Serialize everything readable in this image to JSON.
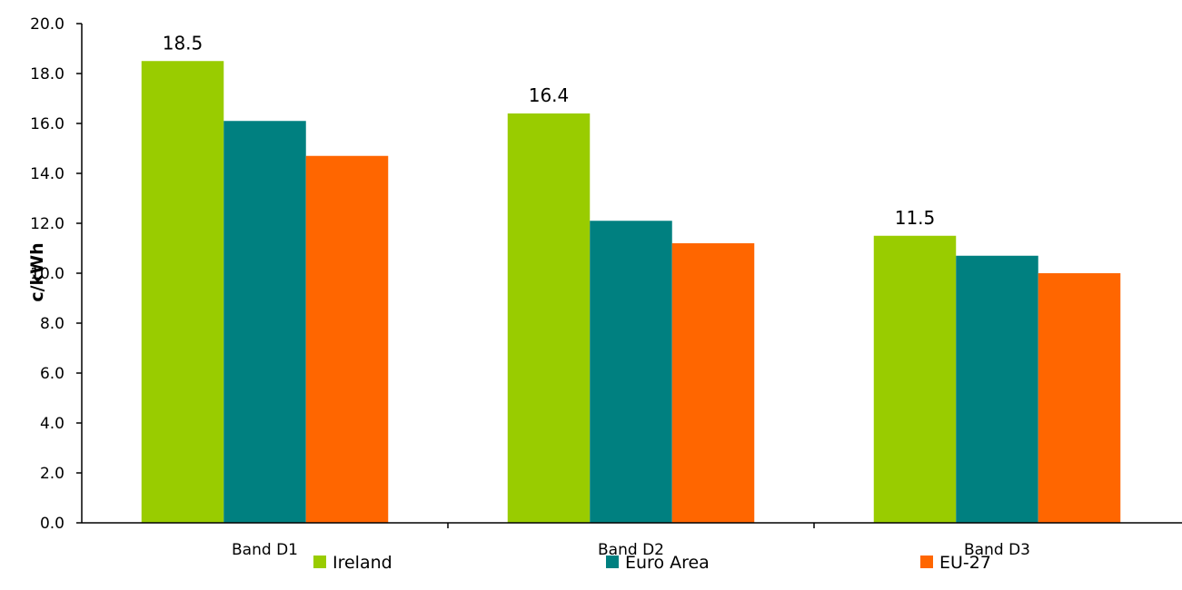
{
  "chart_data": {
    "type": "bar",
    "title": "",
    "xlabel": "",
    "ylabel": "c/kWh",
    "ylim": [
      0,
      20
    ],
    "yticks": [
      "0.0",
      "2.0",
      "4.0",
      "6.0",
      "8.0",
      "10.0",
      "12.0",
      "14.0",
      "16.0",
      "18.0",
      "20.0"
    ],
    "categories": [
      "Band D1",
      "Band D2",
      "Band D3"
    ],
    "series": [
      {
        "name": "Ireland",
        "color": "#99cc00",
        "values": [
          18.5,
          16.4,
          11.5
        ],
        "data_labels": [
          "18.5",
          "16.4",
          "11.5"
        ]
      },
      {
        "name": "Euro Area",
        "color": "#008080",
        "values": [
          16.1,
          12.1,
          10.7
        ]
      },
      {
        "name": "EU-27",
        "color": "#ff6600",
        "values": [
          14.7,
          11.2,
          10.0
        ]
      }
    ],
    "grid": false,
    "legend_position": "bottom"
  }
}
